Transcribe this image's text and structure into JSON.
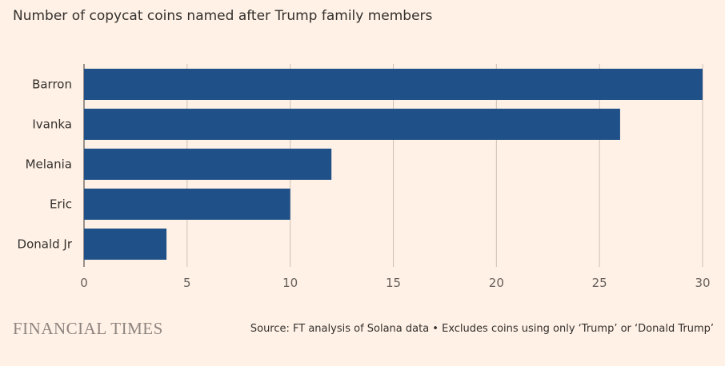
{
  "chart_data": {
    "type": "bar",
    "orientation": "horizontal",
    "title": "Number of copycat coins named after Trump family members",
    "categories": [
      "Barron",
      "Ivanka",
      "Melania",
      "Eric",
      "Donald Jr"
    ],
    "values": [
      30,
      26,
      12,
      10,
      4
    ],
    "xlim": [
      0,
      30
    ],
    "xticks": [
      0,
      5,
      10,
      15,
      20,
      25,
      30
    ],
    "grid": true,
    "bar_color": "#1f5088",
    "grid_color": "#ccc1b7"
  },
  "footer": {
    "logo": "FINANCIAL TIMES",
    "source": "Source: FT analysis of Solana data • Excludes coins using only ‘Trump’ or ‘Donald Trump’"
  }
}
